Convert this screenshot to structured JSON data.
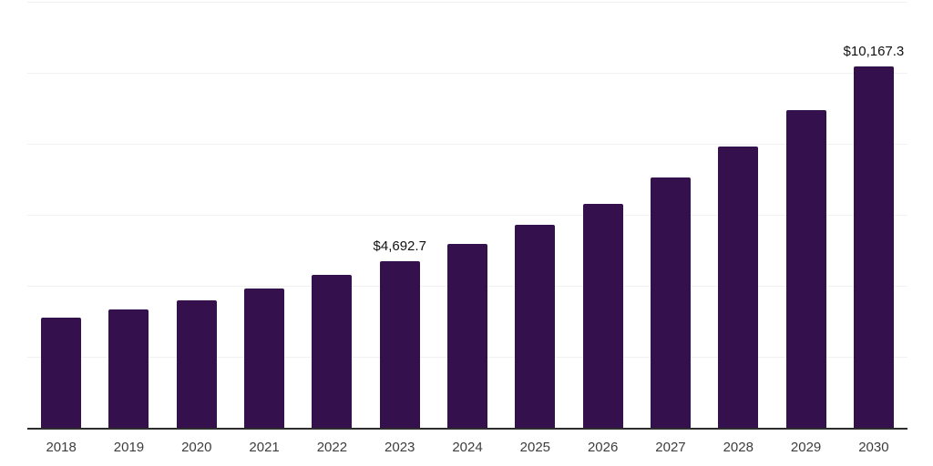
{
  "chart_data": {
    "type": "bar",
    "title": "",
    "xlabel": "",
    "ylabel": "",
    "categories": [
      "2018",
      "2019",
      "2020",
      "2021",
      "2022",
      "2023",
      "2024",
      "2025",
      "2026",
      "2027",
      "2028",
      "2029",
      "2030"
    ],
    "values": [
      3100,
      3330,
      3590,
      3930,
      4300,
      4692.7,
      5170,
      5710,
      6320,
      7040,
      7930,
      8960,
      10167.3
    ],
    "value_labels": [
      "",
      "",
      "",
      "",
      "",
      "$4,692.7",
      "",
      "",
      "",
      "",
      "",
      "",
      "$10,167.3"
    ],
    "ylim": [
      0,
      12000
    ],
    "gridline_step": 2000,
    "grid": "horizontal-only",
    "legend": "none",
    "y_axis_tick_labels": "none",
    "colors": {
      "bar": "#34114c",
      "axis_line": "#2d2d2d",
      "gridline": "#f1f1f1",
      "tick_label": "#3d3d3d",
      "value_label": "#111111",
      "background": "#ffffff"
    }
  }
}
